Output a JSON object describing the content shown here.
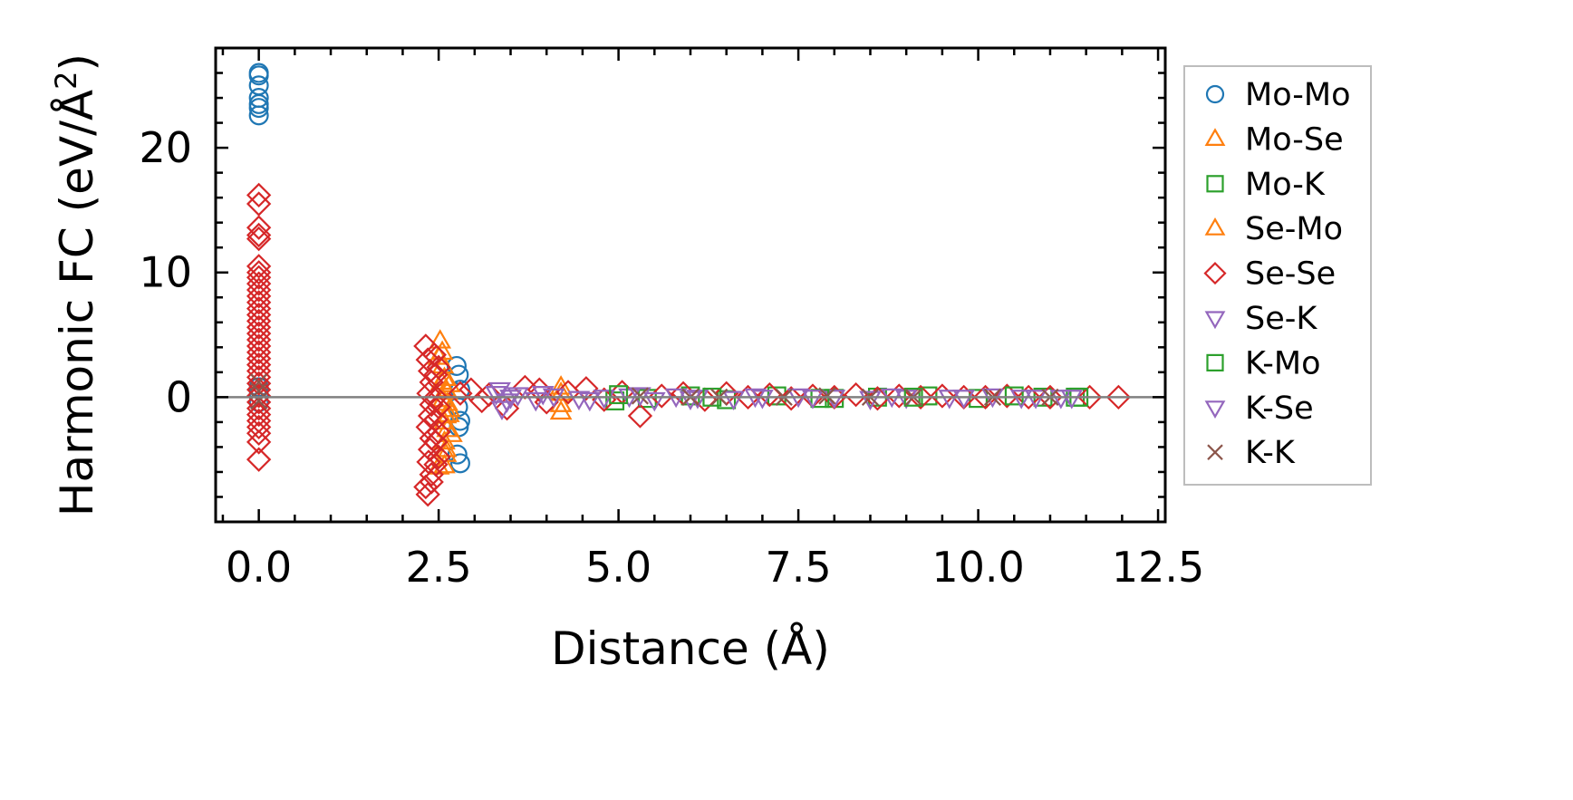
{
  "chart_data": {
    "type": "scatter",
    "title": "",
    "xlabel": "Distance (Å)",
    "ylabel": "Harmonic FC (eV/Å²)",
    "ylabel_main": "Harmonic FC (eV/Å",
    "ylabel_sup": "2",
    "ylabel_close": ")",
    "xlim": [
      -0.6,
      12.6
    ],
    "ylim": [
      -10,
      28
    ],
    "xticks": [
      0.0,
      2.5,
      5.0,
      7.5,
      10.0,
      12.5
    ],
    "xtick_labels": [
      "0.0",
      "2.5",
      "5.0",
      "7.5",
      "10.0",
      "12.5"
    ],
    "yticks": [
      0,
      10,
      20
    ],
    "ytick_labels": [
      "0",
      "10",
      "20"
    ],
    "grid": false,
    "legend_position": "right",
    "reference_line_y": 0,
    "series": [
      {
        "name": "Mo-Mo",
        "marker": "circle",
        "color": "#1f77b4",
        "filled": false,
        "points": [
          [
            0,
            26.0
          ],
          [
            0,
            25.8
          ],
          [
            0,
            25.0
          ],
          [
            0,
            24.0
          ],
          [
            0,
            23.5
          ],
          [
            0,
            23.2
          ],
          [
            0,
            22.6
          ],
          [
            0,
            0.8
          ],
          [
            0,
            0.2
          ],
          [
            0,
            -0.4
          ],
          [
            2.75,
            2.5
          ],
          [
            2.78,
            1.8
          ],
          [
            2.8,
            0.6
          ],
          [
            2.77,
            -0.8
          ],
          [
            2.8,
            -1.9
          ],
          [
            2.78,
            -2.4
          ],
          [
            2.76,
            -4.6
          ],
          [
            2.8,
            -5.3
          ]
        ]
      },
      {
        "name": "Mo-Se",
        "marker": "triangle-up",
        "color": "#ff7f0e",
        "filled": false,
        "points": [
          [
            2.52,
            4.5
          ],
          [
            2.55,
            3.6
          ],
          [
            2.56,
            2.5
          ],
          [
            2.58,
            1.5
          ],
          [
            2.6,
            0.6
          ],
          [
            2.62,
            -0.5
          ],
          [
            2.6,
            -1.5
          ],
          [
            2.62,
            -2.6
          ],
          [
            2.58,
            -3.6
          ],
          [
            2.6,
            -4.6
          ],
          [
            2.58,
            -5.5
          ],
          [
            2.65,
            -1.0
          ],
          [
            2.65,
            1.0
          ],
          [
            2.68,
            -3.0
          ],
          [
            2.5,
            -5.6
          ],
          [
            4.2,
            0.3
          ],
          [
            4.2,
            -0.6
          ],
          [
            4.2,
            0.8
          ],
          [
            4.2,
            -1.2
          ]
        ]
      },
      {
        "name": "Mo-K",
        "marker": "square",
        "color": "#2ca02c",
        "filled": false,
        "points": [
          [
            4.95,
            -0.3
          ],
          [
            5.4,
            -0.1
          ],
          [
            6.0,
            0.1
          ],
          [
            6.5,
            -0.2
          ],
          [
            7.2,
            0.1
          ],
          [
            8.0,
            -0.1
          ],
          [
            8.6,
            0.0
          ],
          [
            9.3,
            0.1
          ],
          [
            10.0,
            -0.1
          ],
          [
            10.9,
            0.0
          ],
          [
            11.35,
            0.0
          ]
        ]
      },
      {
        "name": "Se-Mo",
        "marker": "triangle-up",
        "color": "#ff7f0e",
        "filled": false,
        "points": [
          [
            2.5,
            3.2
          ],
          [
            2.54,
            1.2
          ],
          [
            2.56,
            -0.2
          ],
          [
            2.58,
            -2.0
          ],
          [
            2.6,
            -4.2
          ],
          [
            2.62,
            0.4
          ],
          [
            2.64,
            -1.4
          ]
        ]
      },
      {
        "name": "Se-Se",
        "marker": "diamond",
        "color": "#d62728",
        "filled": false,
        "points": [
          [
            0,
            16.2
          ],
          [
            0,
            15.5
          ],
          [
            0,
            13.6
          ],
          [
            0,
            13.0
          ],
          [
            0,
            12.7
          ],
          [
            0,
            10.5
          ],
          [
            0,
            10.0
          ],
          [
            0,
            9.6
          ],
          [
            0,
            9.1
          ],
          [
            0,
            8.6
          ],
          [
            0,
            8.1
          ],
          [
            0,
            7.6
          ],
          [
            0,
            7.1
          ],
          [
            0,
            6.6
          ],
          [
            0,
            6.1
          ],
          [
            0,
            5.6
          ],
          [
            0,
            5.1
          ],
          [
            0,
            4.6
          ],
          [
            0,
            4.1
          ],
          [
            0,
            3.6
          ],
          [
            0,
            3.1
          ],
          [
            0,
            2.6
          ],
          [
            0,
            2.1
          ],
          [
            0,
            1.6
          ],
          [
            0,
            1.1
          ],
          [
            0,
            0.6
          ],
          [
            0,
            0.1
          ],
          [
            0,
            -0.4
          ],
          [
            0,
            -0.9
          ],
          [
            0,
            -1.4
          ],
          [
            0,
            -1.9
          ],
          [
            0,
            -2.4
          ],
          [
            0,
            -2.9
          ],
          [
            0,
            -3.6
          ],
          [
            0,
            -5.0
          ],
          [
            2.32,
            4.1
          ],
          [
            2.35,
            3.0
          ],
          [
            2.38,
            2.1
          ],
          [
            2.4,
            1.2
          ],
          [
            2.36,
            0.3
          ],
          [
            2.4,
            -0.6
          ],
          [
            2.38,
            -1.5
          ],
          [
            2.35,
            -2.4
          ],
          [
            2.4,
            -3.3
          ],
          [
            2.38,
            -4.2
          ],
          [
            2.36,
            -5.2
          ],
          [
            2.4,
            -6.2
          ],
          [
            2.32,
            -7.2
          ],
          [
            2.35,
            -7.8
          ],
          [
            2.4,
            -6.8
          ],
          [
            2.44,
            3.4
          ],
          [
            2.46,
            1.8
          ],
          [
            2.46,
            0.0
          ],
          [
            2.46,
            -1.8
          ],
          [
            2.46,
            -3.6
          ],
          [
            2.46,
            -5.4
          ],
          [
            2.5,
            2.4
          ],
          [
            2.5,
            -0.8
          ],
          [
            2.5,
            -2.8
          ],
          [
            2.5,
            -4.8
          ],
          [
            2.8,
            0.3
          ],
          [
            2.95,
            0.6
          ],
          [
            3.1,
            -0.3
          ],
          [
            3.2,
            0.2
          ],
          [
            3.45,
            -0.9
          ],
          [
            3.7,
            0.8
          ],
          [
            3.9,
            0.6
          ],
          [
            4.0,
            -0.4
          ],
          [
            4.3,
            0.4
          ],
          [
            4.55,
            0.7
          ],
          [
            4.8,
            -0.2
          ],
          [
            5.05,
            0.4
          ],
          [
            5.3,
            -1.5
          ],
          [
            5.6,
            0.1
          ],
          [
            5.9,
            0.3
          ],
          [
            6.2,
            -0.2
          ],
          [
            6.5,
            0.3
          ],
          [
            6.8,
            0.0
          ],
          [
            7.1,
            0.2
          ],
          [
            7.4,
            -0.1
          ],
          [
            7.7,
            0.1
          ],
          [
            8.0,
            0.0
          ],
          [
            8.3,
            0.2
          ],
          [
            8.6,
            -0.1
          ],
          [
            8.9,
            0.1
          ],
          [
            9.2,
            0.0
          ],
          [
            9.5,
            0.1
          ],
          [
            9.8,
            0.0
          ],
          [
            10.1,
            0.0
          ],
          [
            10.4,
            0.1
          ],
          [
            10.7,
            0.0
          ],
          [
            11.0,
            0.0
          ],
          [
            11.55,
            0.0
          ],
          [
            11.95,
            0.0
          ]
        ]
      },
      {
        "name": "Se-K",
        "marker": "triangle-down",
        "color": "#9467bd",
        "filled": false,
        "points": [
          [
            3.3,
            0.3
          ],
          [
            3.38,
            -0.9
          ],
          [
            3.45,
            -0.3
          ],
          [
            3.6,
            0.2
          ],
          [
            3.85,
            -0.2
          ],
          [
            4.1,
            0.1
          ],
          [
            4.45,
            -0.1
          ],
          [
            4.8,
            0.0
          ],
          [
            5.15,
            0.1
          ],
          [
            5.5,
            -0.2
          ],
          [
            5.8,
            0.1
          ],
          [
            6.1,
            0.0
          ],
          [
            6.6,
            -0.1
          ],
          [
            7.0,
            0.0
          ],
          [
            7.5,
            0.1
          ],
          [
            8.0,
            0.0
          ],
          [
            8.5,
            -0.1
          ],
          [
            9.0,
            0.0
          ],
          [
            9.6,
            0.0
          ],
          [
            10.2,
            0.1
          ],
          [
            10.8,
            0.0
          ],
          [
            11.15,
            0.0
          ]
        ]
      },
      {
        "name": "K-Mo",
        "marker": "square",
        "color": "#2ca02c",
        "filled": false,
        "points": [
          [
            5.0,
            0.2
          ],
          [
            6.3,
            0.0
          ],
          [
            7.8,
            -0.1
          ],
          [
            9.1,
            0.0
          ],
          [
            10.5,
            0.1
          ],
          [
            11.4,
            0.0
          ]
        ]
      },
      {
        "name": "K-Se",
        "marker": "triangle-down",
        "color": "#9467bd",
        "filled": false,
        "points": [
          [
            3.35,
            0.6
          ],
          [
            3.5,
            0.0
          ],
          [
            3.95,
            0.3
          ],
          [
            4.6,
            -0.2
          ],
          [
            5.3,
            0.2
          ],
          [
            6.0,
            -0.1
          ],
          [
            6.9,
            0.1
          ],
          [
            7.7,
            0.0
          ],
          [
            8.8,
            0.1
          ],
          [
            9.8,
            0.0
          ],
          [
            10.6,
            0.0
          ],
          [
            11.3,
            0.0
          ]
        ]
      },
      {
        "name": "K-K",
        "marker": "x",
        "color": "#8c564b",
        "filled": false,
        "points": [
          [
            0,
            1.2
          ],
          [
            0,
            0.5
          ],
          [
            0,
            -0.3
          ],
          [
            5.3,
            0.1
          ],
          [
            6.0,
            0.0
          ],
          [
            6.4,
            0.0
          ],
          [
            7.3,
            0.0
          ],
          [
            7.9,
            0.1
          ],
          [
            8.5,
            0.0
          ],
          [
            9.1,
            0.0
          ],
          [
            10.2,
            0.0
          ],
          [
            11.0,
            0.0
          ]
        ]
      }
    ]
  }
}
